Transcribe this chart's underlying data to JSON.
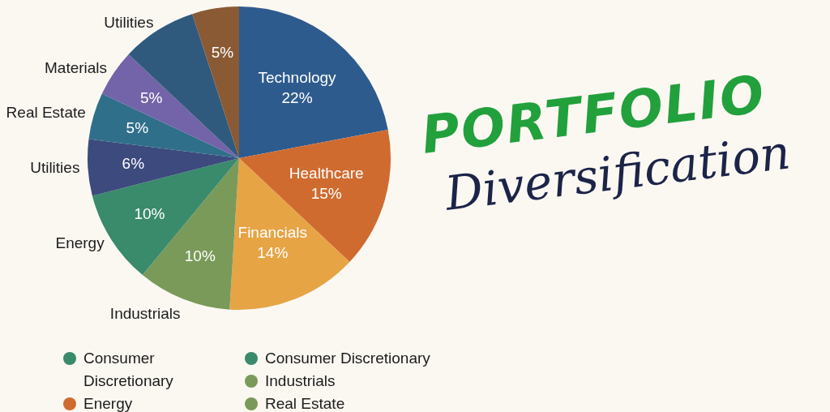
{
  "chart_data": {
    "type": "pie",
    "title": "PORTFOLIO",
    "subtitle": "Diversification",
    "categories": [
      "Technology",
      "Healthcare",
      "Financials",
      "Industrials",
      "Energy",
      "Utilities",
      "Real Estate",
      "Materials",
      "Utilities",
      null
    ],
    "values": [
      22,
      15,
      14,
      10,
      10,
      6,
      5,
      5,
      8,
      5
    ],
    "value_labels": [
      "22%",
      "15%",
      "14%",
      "10%",
      "10%",
      "6%",
      "5%",
      "5%",
      null,
      "5%"
    ],
    "colors": [
      "#2e5b8e",
      "#d06b30",
      "#e6a445",
      "#7a9a5a",
      "#3a8a6c",
      "#3c4a7e",
      "#306f8a",
      "#7363a8",
      "#2f5a7e",
      "#8a5a34"
    ],
    "annotations": [
      "Consumer Discretionary",
      "Energy",
      "Consumer Discretionary",
      "Industrials",
      "Real Estate"
    ],
    "legend": false
  }
}
